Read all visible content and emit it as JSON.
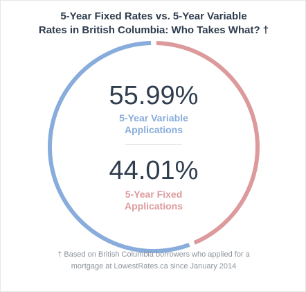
{
  "chart_data": {
    "type": "pie",
    "title": [
      "5-Year Fixed Rates vs. 5-Year Variable",
      "Rates in British Columbia: Who Takes What? †"
    ],
    "slices": [
      {
        "value": 55.99,
        "value_text": "55.99%",
        "label": [
          "5-Year Variable",
          "Applications"
        ],
        "color": "#88acdb"
      },
      {
        "value": 44.01,
        "value_text": "44.01%",
        "label": [
          "5-Year Fixed",
          "Applications"
        ],
        "color": "#dc9a9c"
      }
    ],
    "footnote": [
      "† Based on British Columbia borrowers who applied for a",
      "mortgage at LowestRates.ca since January 2014"
    ]
  }
}
